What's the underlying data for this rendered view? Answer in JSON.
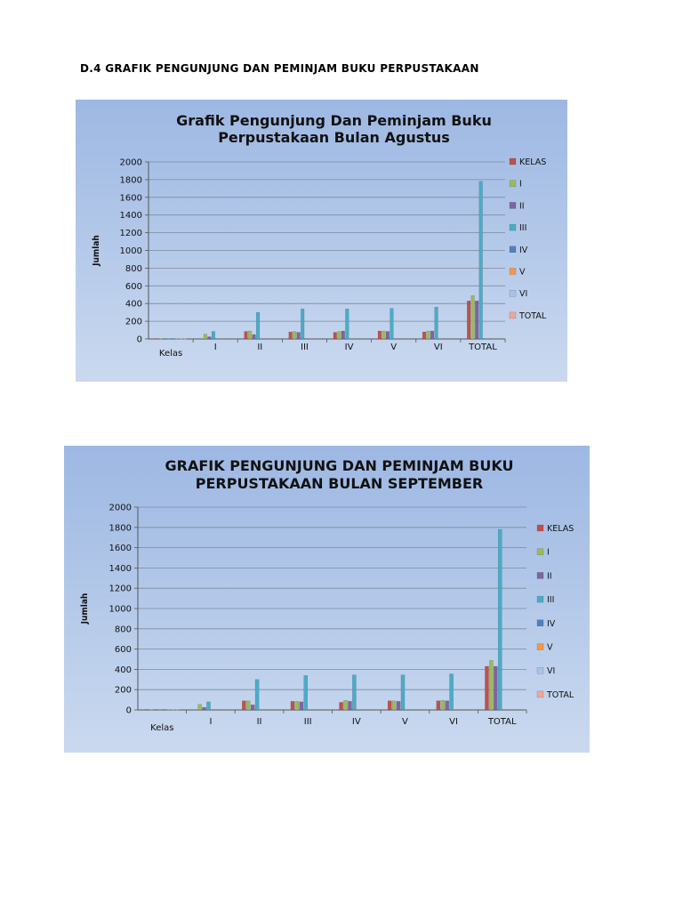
{
  "heading": "D.4 GRAFIK PENGUNJUNG DAN PEMINJAM BUKU PERPUSTAKAAN",
  "series_colors": [
    "#c0504d",
    "#9bbb59",
    "#8064a2",
    "#4bacc6",
    "#4f81bd",
    "#f79646",
    "#a5c4e8",
    "#f2a594"
  ],
  "chart_data": [
    {
      "type": "bar",
      "title": "Grafik Pengunjung Dan Peminjam Buku Perpustakaan Bulan Agustus",
      "title_lines": [
        "Grafik Pengunjung Dan Peminjam Buku",
        "Perpustakaan Bulan Agustus"
      ],
      "ylabel": "Jumlah",
      "xlabel": "",
      "ylim": [
        0,
        2000
      ],
      "yticks": [
        0,
        200,
        400,
        600,
        800,
        1000,
        1200,
        1400,
        1600,
        1800,
        2000
      ],
      "grid": true,
      "legend_position": "right",
      "categories": [
        "Kelas",
        "I",
        "II",
        "III",
        "IV",
        "V",
        "VI",
        "TOTAL"
      ],
      "series": [
        {
          "name": "KELAS",
          "values": [
            5,
            0,
            85,
            80,
            75,
            90,
            80,
            430
          ]
        },
        {
          "name": "I",
          "values": [
            5,
            55,
            90,
            85,
            85,
            90,
            90,
            490
          ]
        },
        {
          "name": "II",
          "values": [
            5,
            25,
            50,
            75,
            90,
            85,
            90,
            430
          ]
        },
        {
          "name": "III",
          "values": [
            5,
            85,
            300,
            340,
            340,
            345,
            360,
            1780
          ]
        },
        {
          "name": "IV",
          "values": [
            5,
            0,
            0,
            0,
            0,
            0,
            0,
            0
          ]
        },
        {
          "name": "V",
          "values": [
            5,
            0,
            0,
            0,
            0,
            0,
            0,
            0
          ]
        },
        {
          "name": "VI",
          "values": [
            5,
            0,
            0,
            0,
            0,
            0,
            0,
            0
          ]
        },
        {
          "name": "TOTAL",
          "values": [
            5,
            0,
            0,
            0,
            0,
            0,
            0,
            0
          ]
        }
      ]
    },
    {
      "type": "bar",
      "title": "GRAFIK PENGUNJUNG DAN PEMINJAM BUKU PERPUSTAKAAN BULAN SEPTEMBER",
      "title_lines": [
        "GRAFIK PENGUNJUNG DAN PEMINJAM BUKU",
        "PERPUSTAKAAN BULAN SEPTEMBER"
      ],
      "ylabel": "Jumlah",
      "xlabel": "",
      "ylim": [
        0,
        2000
      ],
      "yticks": [
        0,
        200,
        400,
        600,
        800,
        1000,
        1200,
        1400,
        1600,
        1800,
        2000
      ],
      "grid": true,
      "legend_position": "right",
      "categories": [
        "Kelas",
        "I",
        "II",
        "III",
        "IV",
        "V",
        "VI",
        "TOTAL"
      ],
      "series": [
        {
          "name": "KELAS",
          "values": [
            5,
            0,
            90,
            85,
            75,
            90,
            90,
            430
          ]
        },
        {
          "name": "I",
          "values": [
            5,
            55,
            90,
            85,
            95,
            90,
            95,
            490
          ]
        },
        {
          "name": "II",
          "values": [
            5,
            25,
            50,
            80,
            85,
            85,
            90,
            430
          ]
        },
        {
          "name": "III",
          "values": [
            5,
            80,
            300,
            340,
            345,
            345,
            355,
            1780
          ]
        },
        {
          "name": "IV",
          "values": [
            5,
            0,
            0,
            0,
            0,
            0,
            0,
            0
          ]
        },
        {
          "name": "V",
          "values": [
            5,
            0,
            0,
            0,
            0,
            0,
            0,
            0
          ]
        },
        {
          "name": "VI",
          "values": [
            5,
            0,
            0,
            0,
            0,
            0,
            0,
            0
          ]
        },
        {
          "name": "TOTAL",
          "values": [
            5,
            0,
            0,
            0,
            0,
            0,
            0,
            0
          ]
        }
      ]
    }
  ]
}
